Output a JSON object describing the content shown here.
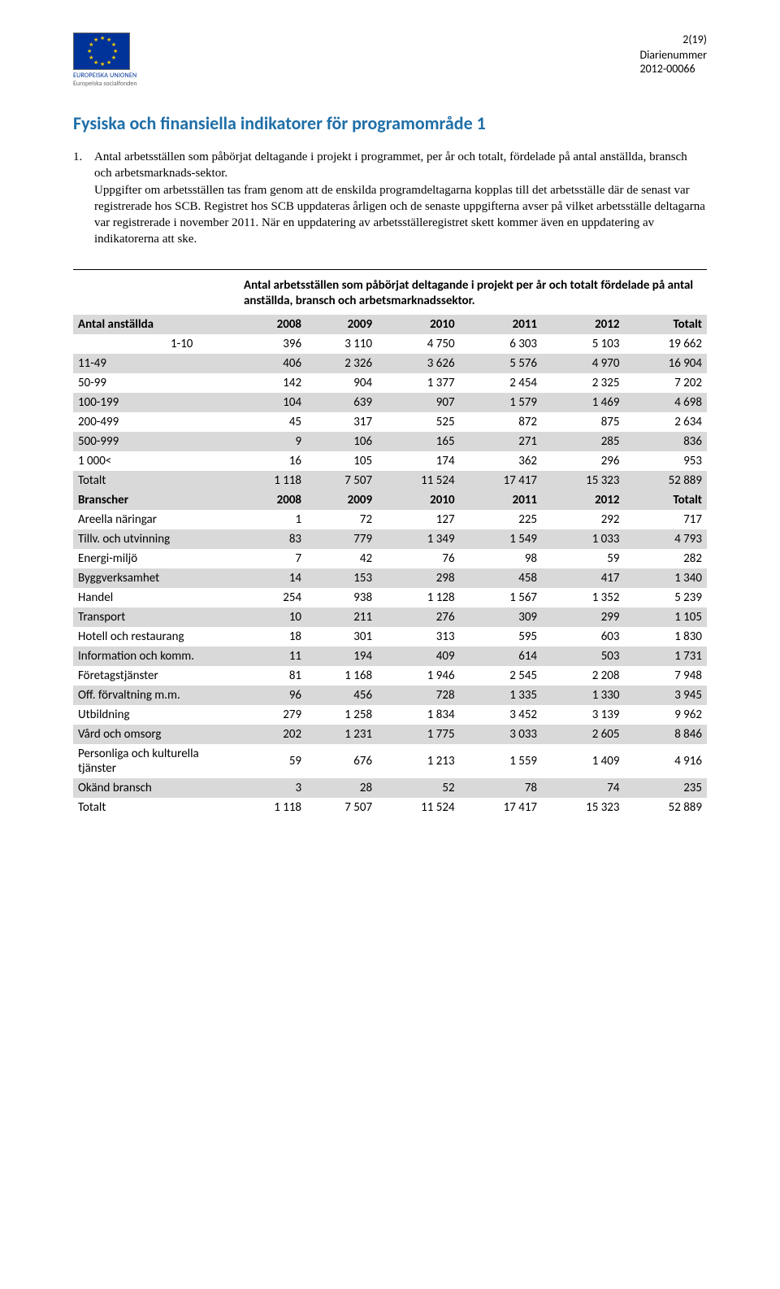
{
  "header": {
    "page_no": "2(19)",
    "diarienummer_label": "Diarienummer",
    "diarienummer_value": "2012-00066",
    "eu_label": "EUROPEISKA UNIONEN",
    "eu_sublabel": "Europeiska socialfonden"
  },
  "heading": "Fysiska och finansiella indikatorer för programområde 1",
  "item": {
    "num": "1.",
    "lead": "Antal arbetsställen som påbörjat deltagande i projekt i programmet, per år och totalt, fördelade på antal anställda, bransch och arbetsmarknads-sektor.",
    "rest": "Uppgifter om arbetsställen tas fram genom att de enskilda programdeltagarna kopplas till det arbetsställe där de senast var registrerade hos SCB. Registret hos SCB uppdateras årligen och de senaste uppgifterna avser på vilket arbetsställe deltagarna var registrerade i november 2011. När en uppdatering av arbetsställeregistret skett kommer även en uppdatering av indikatorerna att ske."
  },
  "table": {
    "intro": "Antal arbetsställen som påbörjat deltagande i projekt per år och totalt fördelade på antal anställda, bransch och arbetsmarknadssektor.",
    "years": [
      "2008",
      "2009",
      "2010",
      "2011",
      "2012",
      "Totalt"
    ],
    "sections": {
      "anstallda": {
        "label": "Antal anställda",
        "rows": [
          {
            "label": "1-10",
            "v": [
              "396",
              "3 110",
              "4 750",
              "6 303",
              "5 103",
              "19 662"
            ],
            "shade": false,
            "indent": true
          },
          {
            "label": "11-49",
            "v": [
              "406",
              "2 326",
              "3 626",
              "5 576",
              "4 970",
              "16 904"
            ],
            "shade": true
          },
          {
            "label": "50-99",
            "v": [
              "142",
              "904",
              "1 377",
              "2 454",
              "2 325",
              "7 202"
            ],
            "shade": false
          },
          {
            "label": "100-199",
            "v": [
              "104",
              "639",
              "907",
              "1 579",
              "1 469",
              "4 698"
            ],
            "shade": true
          },
          {
            "label": "200-499",
            "v": [
              "45",
              "317",
              "525",
              "872",
              "875",
              "2 634"
            ],
            "shade": false
          },
          {
            "label": "500-999",
            "v": [
              "9",
              "106",
              "165",
              "271",
              "285",
              "836"
            ],
            "shade": true
          },
          {
            "label": "1 000<",
            "v": [
              "16",
              "105",
              "174",
              "362",
              "296",
              "953"
            ],
            "shade": false
          },
          {
            "label": "Totalt",
            "v": [
              "1 118",
              "7 507",
              "11 524",
              "17 417",
              "15 323",
              "52 889"
            ],
            "shade": true
          }
        ]
      },
      "branscher": {
        "label": "Branscher",
        "rows": [
          {
            "label": "Areella näringar",
            "v": [
              "1",
              "72",
              "127",
              "225",
              "292",
              "717"
            ],
            "shade": false
          },
          {
            "label": "Tillv. och utvinning",
            "v": [
              "83",
              "779",
              "1 349",
              "1 549",
              "1 033",
              "4 793"
            ],
            "shade": true
          },
          {
            "label": "Energi-miljö",
            "v": [
              "7",
              "42",
              "76",
              "98",
              "59",
              "282"
            ],
            "shade": false
          },
          {
            "label": "Byggverksamhet",
            "v": [
              "14",
              "153",
              "298",
              "458",
              "417",
              "1 340"
            ],
            "shade": true
          },
          {
            "label": "Handel",
            "v": [
              "254",
              "938",
              "1 128",
              "1 567",
              "1 352",
              "5 239"
            ],
            "shade": false
          },
          {
            "label": "Transport",
            "v": [
              "10",
              "211",
              "276",
              "309",
              "299",
              "1 105"
            ],
            "shade": true
          },
          {
            "label": "Hotell och restaurang",
            "v": [
              "18",
              "301",
              "313",
              "595",
              "603",
              "1 830"
            ],
            "shade": false
          },
          {
            "label": "Information och komm.",
            "v": [
              "11",
              "194",
              "409",
              "614",
              "503",
              "1 731"
            ],
            "shade": true
          },
          {
            "label": "Företagstjänster",
            "v": [
              "81",
              "1 168",
              "1 946",
              "2 545",
              "2 208",
              "7 948"
            ],
            "shade": false
          },
          {
            "label": "Off.  förvaltning m.m.",
            "v": [
              "96",
              "456",
              "728",
              "1 335",
              "1 330",
              "3 945"
            ],
            "shade": true
          },
          {
            "label": "Utbildning",
            "v": [
              "279",
              "1 258",
              "1 834",
              "3 452",
              "3 139",
              "9 962"
            ],
            "shade": false
          },
          {
            "label": "Vård och omsorg",
            "v": [
              "202",
              "1 231",
              "1 775",
              "3 033",
              "2 605",
              "8 846"
            ],
            "shade": true
          },
          {
            "label": "Personliga och kulturella tjänster",
            "v": [
              "59",
              "676",
              "1 213",
              "1 559",
              "1 409",
              "4 916"
            ],
            "shade": false
          },
          {
            "label": "Okänd bransch",
            "v": [
              "3",
              "28",
              "52",
              "78",
              "74",
              "235"
            ],
            "shade": true
          },
          {
            "label": "Totalt",
            "v": [
              "1 118",
              "7 507",
              "11 524",
              "17 417",
              "15 323",
              "52 889"
            ],
            "shade": false
          }
        ]
      }
    }
  },
  "styles": {
    "heading_color": "#1f6fa8",
    "shade_color": "#d9d9d9",
    "text_color": "#000000",
    "page_bg": "#ffffff"
  }
}
